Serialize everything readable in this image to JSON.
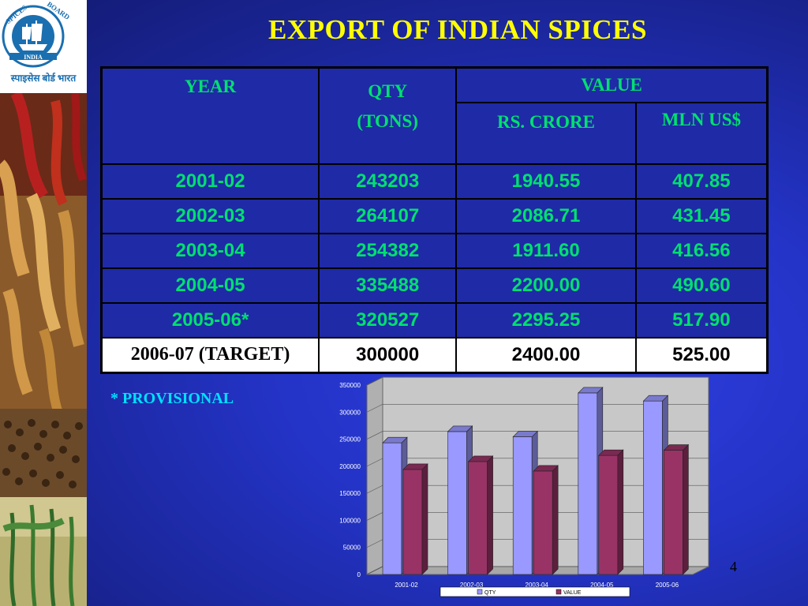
{
  "title": "EXPORT OF  INDIAN SPICES",
  "logo": {
    "text_top": "SPICES BOARD",
    "text_mid": "INDIA",
    "text_bottom": "स्पाइसेस बोर्ड भारत"
  },
  "table": {
    "header_year": "YEAR",
    "header_qty": "QTY",
    "header_qty_unit": "(TONS)",
    "header_value": "VALUE",
    "header_rs": "RS. CRORE",
    "header_usd": "MLN US$",
    "rows": [
      {
        "year": "2001-02",
        "qty": "243203",
        "rs": "1940.55",
        "usd": "407.85"
      },
      {
        "year": "2002-03",
        "qty": "264107",
        "rs": "2086.71",
        "usd": "431.45"
      },
      {
        "year": "2003-04",
        "qty": "254382",
        "rs": "1911.60",
        "usd": "416.56"
      },
      {
        "year": "2004-05",
        "qty": "335488",
        "rs": "2200.00",
        "usd": "490.60"
      },
      {
        "year": "2005-06*",
        "qty": "320527",
        "rs": "2295.25",
        "usd": "517.90"
      },
      {
        "year": "2006-07 (TARGET)",
        "qty": "300000",
        "rs": "2400.00",
        "usd": "525.00"
      }
    ]
  },
  "footnote": "* PROVISIONAL",
  "page_number": "4",
  "chart_data": {
    "type": "bar",
    "categories": [
      "2001-02",
      "2002-03",
      "2003-04",
      "2004-05",
      "2005-06"
    ],
    "series": [
      {
        "name": "QTY",
        "values": [
          243203,
          264107,
          254382,
          335488,
          320527
        ],
        "color": "#9999ff"
      },
      {
        "name": "VALUE",
        "values": [
          194055,
          208671,
          191160,
          220000,
          229525
        ],
        "color": "#993366"
      }
    ],
    "yticks": [
      0,
      50000,
      100000,
      150000,
      200000,
      250000,
      300000,
      350000
    ],
    "ylim": [
      0,
      350000
    ],
    "legend": "bottom",
    "grid": true
  },
  "colors": {
    "title": "#ffff00",
    "cell_text": "#00e070",
    "footnote": "#00e0ff",
    "background": "#2434c8"
  }
}
